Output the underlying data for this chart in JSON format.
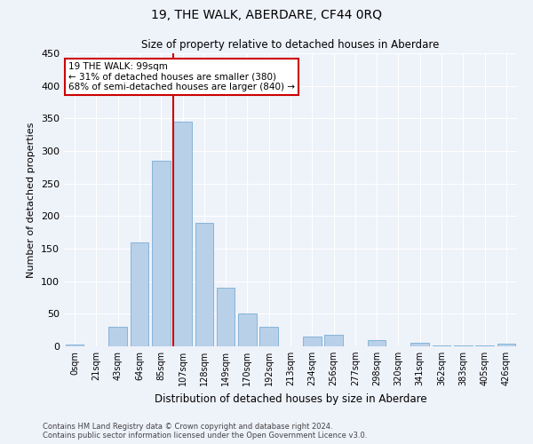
{
  "title": "19, THE WALK, ABERDARE, CF44 0RQ",
  "subtitle": "Size of property relative to detached houses in Aberdare",
  "xlabel": "Distribution of detached houses by size in Aberdare",
  "ylabel": "Number of detached properties",
  "bar_color": "#b8d0e8",
  "bar_edge_color": "#7aadd4",
  "categories": [
    "0sqm",
    "21sqm",
    "43sqm",
    "64sqm",
    "85sqm",
    "107sqm",
    "128sqm",
    "149sqm",
    "170sqm",
    "192sqm",
    "213sqm",
    "234sqm",
    "256sqm",
    "277sqm",
    "298sqm",
    "320sqm",
    "341sqm",
    "362sqm",
    "383sqm",
    "405sqm",
    "426sqm"
  ],
  "values": [
    3,
    0,
    30,
    160,
    285,
    345,
    190,
    90,
    50,
    30,
    0,
    15,
    18,
    0,
    10,
    0,
    5,
    2,
    1,
    1,
    4
  ],
  "ylim": [
    0,
    450
  ],
  "yticks": [
    0,
    50,
    100,
    150,
    200,
    250,
    300,
    350,
    400,
    450
  ],
  "property_line_x": 4.55,
  "annotation_text": "19 THE WALK: 99sqm\n← 31% of detached houses are smaller (380)\n68% of semi-detached houses are larger (840) →",
  "footer_line1": "Contains HM Land Registry data © Crown copyright and database right 2024.",
  "footer_line2": "Contains public sector information licensed under the Open Government Licence v3.0.",
  "background_color": "#eef2f9",
  "grid_color": "#ffffff",
  "annotation_box_color": "#ffffff",
  "annotation_box_edge": "#cc0000",
  "vline_color": "#cc0000"
}
